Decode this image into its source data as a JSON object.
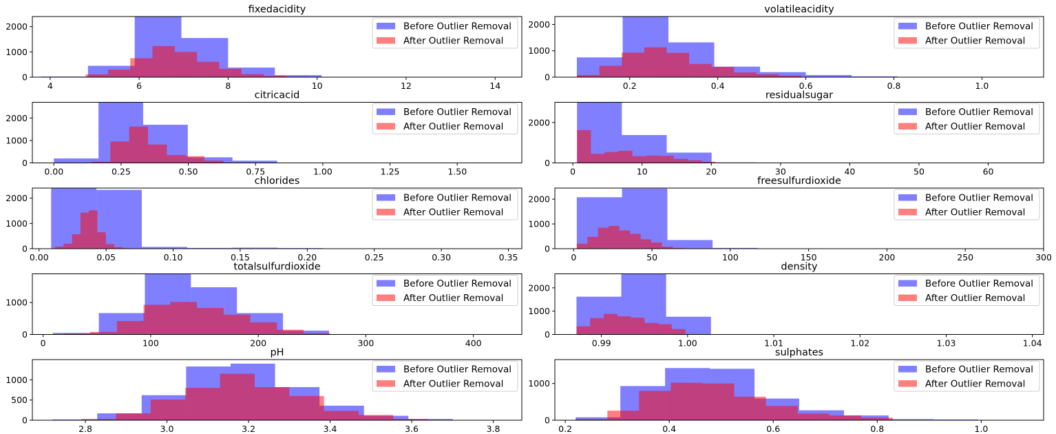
{
  "legend_labels": [
    "Before Outlier Removal",
    "After Outlier Removal"
  ],
  "colors": {
    "before": "#0000ff",
    "after": "#ff0000",
    "alpha": 0.5
  },
  "chart_data": [
    {
      "type": "bar",
      "title": "fixedacidity",
      "legend": "upper-right",
      "xlim": [
        3.6,
        14.6
      ],
      "ylim": [
        0,
        2400
      ],
      "xticks": [
        4,
        6,
        8,
        10,
        12,
        14
      ],
      "xtick_labels": [
        "4",
        "6",
        "8",
        "10",
        "12",
        "14"
      ],
      "yticks": [
        0,
        1000,
        2000
      ],
      "ytick_labels": [
        "0",
        "1000",
        "2000"
      ],
      "series": [
        {
          "name": "Before Outlier Removal",
          "edges": [
            3.8,
            4.85,
            5.9,
            6.95,
            8.0,
            9.05,
            10.1,
            11.15,
            12.2,
            13.25,
            14.2
          ],
          "counts": [
            25,
            450,
            2400,
            1550,
            380,
            80,
            10,
            5,
            3,
            2
          ]
        },
        {
          "name": "After Outlier Removal",
          "edges": [
            4.8,
            5.3,
            5.8,
            6.3,
            6.8,
            7.3,
            7.8,
            8.3,
            8.8,
            9.3,
            9.8
          ],
          "counts": [
            110,
            300,
            750,
            1230,
            1000,
            610,
            330,
            120,
            50,
            20
          ]
        }
      ]
    },
    {
      "type": "bar",
      "title": "volatileacidity",
      "legend": "upper-right",
      "xlim": [
        0.03,
        1.14
      ],
      "ylim": [
        0,
        2300
      ],
      "xticks": [
        0.2,
        0.4,
        0.6,
        0.8,
        1.0
      ],
      "xtick_labels": [
        "0.2",
        "0.4",
        "0.6",
        "0.8",
        "1.0"
      ],
      "yticks": [
        0,
        1000,
        2000
      ],
      "ytick_labels": [
        "0",
        "1000",
        "2000"
      ],
      "series": [
        {
          "name": "Before Outlier Removal",
          "edges": [
            0.08,
            0.184,
            0.288,
            0.392,
            0.496,
            0.6,
            0.704,
            0.808,
            0.912,
            1.016,
            1.1
          ],
          "counts": [
            750,
            2300,
            1320,
            400,
            190,
            80,
            30,
            10,
            5,
            3
          ]
        },
        {
          "name": "After Outlier Removal",
          "edges": [
            0.08,
            0.131,
            0.182,
            0.233,
            0.284,
            0.335,
            0.386,
            0.437,
            0.488,
            0.539,
            0.59
          ],
          "counts": [
            80,
            430,
            930,
            1130,
            920,
            500,
            390,
            180,
            110,
            60
          ]
        }
      ]
    },
    {
      "type": "bar",
      "title": "citricacid",
      "legend": "upper-right",
      "xlim": [
        -0.08,
        1.74
      ],
      "ylim": [
        0,
        2700
      ],
      "xticks": [
        0.0,
        0.25,
        0.5,
        0.75,
        1.0,
        1.25,
        1.5
      ],
      "xtick_labels": [
        "0.00",
        "0.25",
        "0.50",
        "0.75",
        "1.00",
        "1.25",
        "1.50"
      ],
      "yticks": [
        0,
        1000,
        2000
      ],
      "ytick_labels": [
        "0",
        "1000",
        "2000"
      ],
      "series": [
        {
          "name": "Before Outlier Removal",
          "edges": [
            0.0,
            0.166,
            0.332,
            0.498,
            0.664,
            0.83,
            0.996,
            1.162,
            1.328,
            1.494,
            1.66
          ],
          "counts": [
            200,
            2700,
            1700,
            250,
            100,
            10,
            5,
            3,
            2,
            1
          ]
        },
        {
          "name": "After Outlier Removal",
          "edges": [
            0.14,
            0.21,
            0.28,
            0.35,
            0.42,
            0.49,
            0.56,
            0.63,
            0.7,
            0.77,
            0.84
          ],
          "counts": [
            60,
            950,
            1620,
            820,
            350,
            300,
            100,
            20,
            5,
            0
          ]
        }
      ]
    },
    {
      "type": "bar",
      "title": "residualsugar",
      "legend": "upper-right",
      "xlim": [
        -2.6,
        68.0
      ],
      "ylim": [
        0,
        3000
      ],
      "xticks": [
        0,
        10,
        20,
        30,
        40,
        50,
        60
      ],
      "xtick_labels": [
        "0",
        "10",
        "20",
        "30",
        "40",
        "50",
        "60"
      ],
      "yticks": [
        0,
        2000
      ],
      "ytick_labels": [
        "0",
        "2000"
      ],
      "series": [
        {
          "name": "Before Outlier Removal",
          "edges": [
            0.6,
            7.08,
            13.56,
            20.04,
            26.52,
            33.0,
            39.48,
            45.96,
            52.44,
            58.92,
            65.8
          ],
          "counts": [
            3000,
            1380,
            510,
            25,
            5,
            3,
            2,
            1,
            1,
            1
          ]
        },
        {
          "name": "After Outlier Removal",
          "edges": [
            0.6,
            2.6,
            4.6,
            6.6,
            8.6,
            10.6,
            12.6,
            14.6,
            16.6,
            18.6,
            20.6
          ],
          "counts": [
            1620,
            450,
            540,
            600,
            330,
            360,
            350,
            200,
            130,
            60
          ]
        }
      ]
    },
    {
      "type": "bar",
      "title": "chlorides",
      "legend": "upper-right",
      "xlim": [
        -0.005,
        0.36
      ],
      "ylim": [
        0,
        2400
      ],
      "xticks": [
        0.0,
        0.05,
        0.1,
        0.15,
        0.2,
        0.25,
        0.3,
        0.35
      ],
      "xtick_labels": [
        "0.00",
        "0.05",
        "0.10",
        "0.15",
        "0.20",
        "0.25",
        "0.30",
        "0.35"
      ],
      "yticks": [
        0,
        1000,
        2000
      ],
      "ytick_labels": [
        "0",
        "1000",
        "2000"
      ],
      "series": [
        {
          "name": "Before Outlier Removal",
          "edges": [
            0.009,
            0.0428,
            0.0766,
            0.1104,
            0.1442,
            0.178,
            0.2118,
            0.2456,
            0.2794,
            0.3132,
            0.346
          ],
          "counts": [
            2400,
            2330,
            70,
            30,
            40,
            25,
            10,
            5,
            3,
            2
          ]
        },
        {
          "name": "After Outlier Removal",
          "edges": [
            0.012,
            0.0183,
            0.0246,
            0.0309,
            0.0372,
            0.0435,
            0.0498,
            0.0561,
            0.0624,
            0.0687,
            0.075
          ],
          "counts": [
            80,
            200,
            570,
            1430,
            1520,
            650,
            180,
            60,
            20,
            5
          ]
        }
      ]
    },
    {
      "type": "bar",
      "title": "freesulfurdioxide",
      "legend": "upper-right",
      "xlim": [
        -12.0,
        300.0
      ],
      "ylim": [
        0,
        2450
      ],
      "xticks": [
        0,
        50,
        100,
        150,
        200,
        250,
        300
      ],
      "xtick_labels": [
        "0",
        "50",
        "100",
        "150",
        "200",
        "250",
        "300"
      ],
      "yticks": [
        0,
        1000,
        2000
      ],
      "ytick_labels": [
        "0",
        "1000",
        "2000"
      ],
      "series": [
        {
          "name": "Before Outlier Removal",
          "edges": [
            2.0,
            30.9,
            59.8,
            88.7,
            117.6,
            146.5,
            175.4,
            204.3,
            233.2,
            262.1,
            289.0
          ],
          "counts": [
            2080,
            2430,
            350,
            30,
            5,
            3,
            2,
            1,
            1,
            1
          ]
        },
        {
          "name": "After Outlier Removal",
          "edges": [
            2.0,
            8.8,
            15.6,
            22.4,
            29.2,
            36.0,
            42.8,
            49.6,
            56.4,
            63.2,
            70.0
          ],
          "counts": [
            200,
            480,
            850,
            920,
            740,
            600,
            380,
            250,
            80,
            30
          ]
        }
      ]
    },
    {
      "type": "bar",
      "title": "totalsulfurdioxide",
      "legend": "upper-right",
      "xlim": [
        -10.0,
        445.0
      ],
      "ylim": [
        0,
        1900
      ],
      "xticks": [
        0,
        100,
        200,
        300,
        400
      ],
      "xtick_labels": [
        "0",
        "100",
        "200",
        "300",
        "400"
      ],
      "yticks": [
        0,
        1000
      ],
      "ytick_labels": [
        "0",
        "1000"
      ],
      "series": [
        {
          "name": "Before Outlier Removal",
          "edges": [
            9.0,
            51.8,
            94.6,
            137.4,
            180.2,
            223.0,
            265.8,
            308.6,
            351.4,
            394.2,
            440.0
          ],
          "counts": [
            50,
            670,
            1900,
            1480,
            670,
            120,
            10,
            3,
            2,
            1
          ]
        },
        {
          "name": "After Outlier Removal",
          "edges": [
            19.0,
            43.8,
            68.6,
            93.4,
            118.2,
            143.0,
            167.8,
            192.6,
            217.4,
            242.2,
            267.0
          ],
          "counts": [
            30,
            80,
            420,
            930,
            1020,
            830,
            620,
            380,
            150,
            40
          ]
        }
      ]
    },
    {
      "type": "bar",
      "title": "density",
      "legend": "upper-right",
      "xlim": [
        0.9846,
        1.0413
      ],
      "ylim": [
        0,
        2600
      ],
      "xticks": [
        0.99,
        1.0,
        1.01,
        1.02,
        1.03,
        1.04
      ],
      "xtick_labels": [
        "0.99",
        "1.00",
        "1.01",
        "1.02",
        "1.03",
        "1.04"
      ],
      "yticks": [
        0,
        1000,
        2000
      ],
      "ytick_labels": [
        "0",
        "1000",
        "2000"
      ],
      "series": [
        {
          "name": "Before Outlier Removal",
          "edges": [
            0.98711,
            0.99231,
            0.99751,
            1.00271,
            1.00791,
            1.01311,
            1.01831,
            1.02351,
            1.02871,
            1.03391,
            1.03898
          ],
          "counts": [
            1620,
            2600,
            760,
            3,
            1,
            1,
            1,
            1,
            1,
            1
          ]
        },
        {
          "name": "After Outlier Removal",
          "edges": [
            0.98711,
            0.98869,
            0.99027,
            0.99185,
            0.99343,
            0.99501,
            0.99659,
            0.99817,
            0.99975,
            1.00133,
            1.00291
          ],
          "counts": [
            350,
            700,
            880,
            780,
            720,
            490,
            440,
            230,
            20,
            5
          ]
        }
      ]
    },
    {
      "type": "bar",
      "title": "pH",
      "legend": "upper-right",
      "xlim": [
        2.67,
        3.87
      ],
      "ylim": [
        0,
        1500
      ],
      "xticks": [
        2.8,
        3.0,
        3.2,
        3.4,
        3.6,
        3.8
      ],
      "xtick_labels": [
        "2.8",
        "3.0",
        "3.2",
        "3.4",
        "3.6",
        "3.8"
      ],
      "yticks": [
        0,
        500,
        1000
      ],
      "ytick_labels": [
        "0",
        "500",
        "1000"
      ],
      "series": [
        {
          "name": "Before Outlier Removal",
          "edges": [
            2.72,
            2.829,
            2.938,
            3.047,
            3.156,
            3.265,
            3.374,
            3.483,
            3.592,
            3.701,
            3.82
          ],
          "counts": [
            20,
            170,
            620,
            1330,
            1400,
            820,
            360,
            110,
            30,
            5
          ]
        },
        {
          "name": "After Outlier Removal",
          "edges": [
            2.79,
            2.875,
            2.96,
            3.045,
            3.13,
            3.215,
            3.3,
            3.385,
            3.47,
            3.555,
            3.64
          ],
          "counts": [
            30,
            170,
            510,
            800,
            1150,
            820,
            600,
            230,
            130,
            30
          ]
        }
      ]
    },
    {
      "type": "bar",
      "title": "sulphates",
      "legend": "upper-right",
      "xlim": [
        0.18,
        1.12
      ],
      "ylim": [
        0,
        1650
      ],
      "xticks": [
        0.2,
        0.4,
        0.6,
        0.8,
        1.0
      ],
      "xtick_labels": [
        "0.2",
        "0.4",
        "0.6",
        "0.8",
        "1.0"
      ],
      "yticks": [
        0,
        1000
      ],
      "ytick_labels": [
        "0",
        "1000"
      ],
      "series": [
        {
          "name": "Before Outlier Removal",
          "edges": [
            0.22,
            0.306,
            0.392,
            0.478,
            0.564,
            0.65,
            0.736,
            0.822,
            0.908,
            0.994,
            1.08
          ],
          "counts": [
            80,
            930,
            1420,
            1400,
            590,
            270,
            130,
            30,
            20,
            5
          ]
        },
        {
          "name": "After Outlier Removal",
          "edges": [
            0.22,
            0.281,
            0.342,
            0.403,
            0.464,
            0.525,
            0.586,
            0.647,
            0.708,
            0.769,
            0.83
          ],
          "counts": [
            30,
            260,
            800,
            1020,
            1000,
            640,
            390,
            180,
            130,
            70
          ]
        }
      ]
    }
  ]
}
